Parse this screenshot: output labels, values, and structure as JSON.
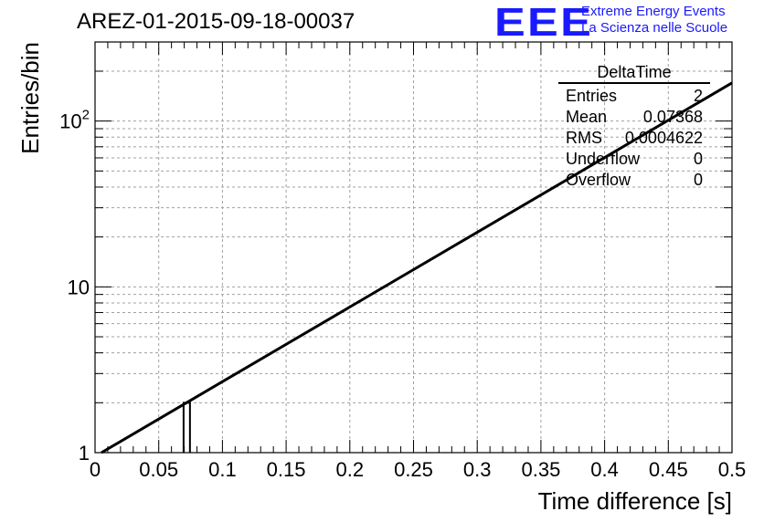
{
  "header": {
    "title": "AREZ-01-2015-09-18-00037",
    "logo_mark": "EEE",
    "logo_line1": "Extreme Energy Events",
    "logo_line2": "La Scienza nelle Scuole"
  },
  "stats": {
    "name": "DeltaTime",
    "rows": [
      {
        "label": "Entries",
        "value": "2"
      },
      {
        "label": "Mean",
        "value": "0.07368"
      },
      {
        "label": "RMS",
        "value": "0.0004622"
      },
      {
        "label": "Underflow",
        "value": "0"
      },
      {
        "label": "Overflow",
        "value": "0"
      }
    ]
  },
  "colors": {
    "logo": "#1a1aff",
    "line": "#000000",
    "grid": "#a0a0a0"
  },
  "chart_data": {
    "type": "line",
    "xlabel": "Time difference [s]",
    "ylabel": "Entries/bin",
    "xlim": [
      0,
      0.5
    ],
    "ylim": [
      1,
      300
    ],
    "yscale": "log",
    "grid": true,
    "x_ticks": [
      "0",
      "0.05",
      "0.1",
      "0.15",
      "0.2",
      "0.25",
      "0.3",
      "0.35",
      "0.4",
      "0.45",
      "0.5"
    ],
    "y_ticks": [
      {
        "value": 1,
        "label": "1"
      },
      {
        "value": 10,
        "label": "10"
      },
      {
        "value": 100,
        "label": "10^2"
      }
    ],
    "series": [
      {
        "x": [
          0.005,
          0.5
        ],
        "y": [
          1.0,
          170
        ]
      }
    ],
    "histogram_bins": [
      {
        "x0": 0.0695,
        "x1": 0.0745,
        "y": 2
      }
    ]
  }
}
